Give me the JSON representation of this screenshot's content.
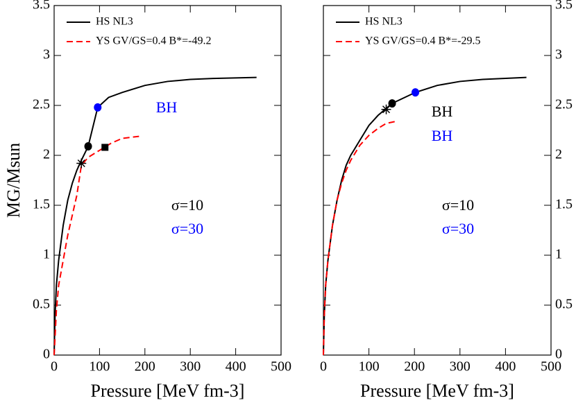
{
  "chart_data": [
    {
      "type": "line",
      "xlabel": "Pressure [MeV fm-3]",
      "ylabel": "MG/Msun",
      "xlim": [
        0,
        500
      ],
      "ylim": [
        0,
        3.5
      ],
      "xticks": [
        0,
        100,
        200,
        300,
        400,
        500
      ],
      "yticks": [
        0,
        0.5,
        1,
        1.5,
        2,
        2.5,
        3,
        3.5
      ],
      "ytick_side": "left",
      "series": [
        {
          "name": "HS  NL3",
          "color": "#000000",
          "dash": false,
          "x": [
            0,
            2,
            5,
            10,
            20,
            30,
            40,
            50,
            60,
            75,
            96,
            120,
            150,
            200,
            250,
            300,
            350,
            446
          ],
          "values": [
            0,
            0.4,
            0.7,
            0.95,
            1.3,
            1.55,
            1.72,
            1.85,
            1.95,
            2.09,
            2.48,
            2.58,
            2.63,
            2.7,
            2.74,
            2.76,
            2.77,
            2.78
          ]
        },
        {
          "name": "YS  GV/GS=0.4  B*=-49.2",
          "color": "#ff0000",
          "dash": true,
          "x": [
            0,
            5,
            10,
            20,
            30,
            40,
            50,
            60,
            75,
            100,
            125,
            150,
            187
          ],
          "values": [
            0,
            0.45,
            0.7,
            0.95,
            1.2,
            1.4,
            1.6,
            1.9,
            1.98,
            2.05,
            2.12,
            2.17,
            2.19
          ]
        }
      ],
      "points": [
        {
          "x": 75,
          "y": 2.09,
          "color": "#000000",
          "marker": "circle"
        },
        {
          "x": 96,
          "y": 2.48,
          "color": "#0000ff",
          "marker": "circle"
        },
        {
          "x": 60,
          "y": 1.92,
          "color": "#000000",
          "marker": "asterisk"
        },
        {
          "x": 112,
          "y": 2.08,
          "color": "#000000",
          "marker": "square"
        }
      ],
      "annotations": [
        {
          "text": "BH",
          "color": "#0000ff"
        },
        {
          "text": "σ=10",
          "color": "#000000"
        },
        {
          "text": "σ=30",
          "color": "#0000ff"
        }
      ]
    },
    {
      "type": "line",
      "xlabel": "Pressure [MeV fm-3]",
      "xlim": [
        0,
        500
      ],
      "ylim": [
        0,
        3.5
      ],
      "xticks": [
        0,
        100,
        200,
        300,
        400,
        500
      ],
      "yticks": [
        0,
        0.5,
        1,
        1.5,
        2,
        2.5,
        3,
        3.5
      ],
      "ytick_side": "right",
      "series": [
        {
          "name": "HS  NL3",
          "color": "#000000",
          "dash": false,
          "x": [
            0,
            2,
            5,
            10,
            20,
            30,
            40,
            50,
            60,
            80,
            100,
            120,
            151,
            202,
            250,
            300,
            350,
            446
          ],
          "values": [
            0,
            0.4,
            0.7,
            0.95,
            1.3,
            1.55,
            1.75,
            1.9,
            2.0,
            2.15,
            2.3,
            2.4,
            2.52,
            2.63,
            2.7,
            2.74,
            2.76,
            2.78
          ]
        },
        {
          "name": "YS  GV/GS=0.4  B*=-29.5",
          "color": "#ff0000",
          "dash": true,
          "x": [
            0,
            2,
            5,
            10,
            20,
            30,
            40,
            50,
            60,
            80,
            100,
            120,
            138,
            159
          ],
          "values": [
            0,
            0.4,
            0.7,
            0.95,
            1.3,
            1.55,
            1.72,
            1.85,
            1.95,
            2.1,
            2.2,
            2.27,
            2.32,
            2.34
          ]
        }
      ],
      "points": [
        {
          "x": 151,
          "y": 2.52,
          "color": "#000000",
          "marker": "circle"
        },
        {
          "x": 202,
          "y": 2.63,
          "color": "#0000ff",
          "marker": "circle"
        },
        {
          "x": 138,
          "y": 2.46,
          "color": "#000000",
          "marker": "asterisk"
        }
      ],
      "annotations": [
        {
          "text": "BH",
          "color": "#000000"
        },
        {
          "text": "BH",
          "color": "#0000ff"
        },
        {
          "text": "σ=10",
          "color": "#000000"
        },
        {
          "text": "σ=30",
          "color": "#0000ff"
        }
      ]
    }
  ]
}
